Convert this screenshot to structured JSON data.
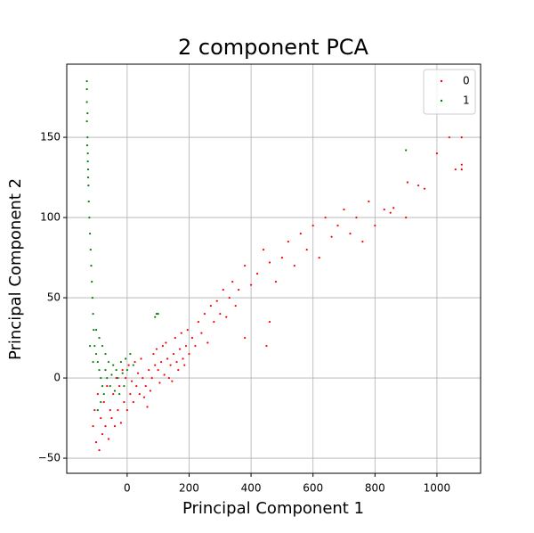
{
  "chart_data": {
    "type": "scatter",
    "title": "2 component PCA",
    "x_label": "Principal Component 1",
    "y_label": "Principal Component 2",
    "xlim": [
      -195,
      1141
    ],
    "ylim": [
      -59.4,
      195.6
    ],
    "xticks": [
      0,
      200,
      400,
      600,
      800,
      1000
    ],
    "yticks": [
      {
        "value": -50,
        "label": "−50"
      },
      0,
      50,
      100,
      150
    ],
    "grid": true,
    "legend": "upper right",
    "series": [
      {
        "name": "0",
        "color": "#ff0000",
        "x": [
          -100,
          -90,
          -80,
          -70,
          -60,
          -50,
          -40,
          -30,
          -20,
          -10,
          0,
          10,
          20,
          30,
          40,
          50,
          60,
          70,
          80,
          90,
          100,
          110,
          120,
          130,
          140,
          150,
          160,
          170,
          180,
          190,
          200,
          -110,
          -105,
          -95,
          -85,
          -75,
          -65,
          -55,
          -45,
          -35,
          -25,
          -15,
          -5,
          5,
          15,
          25,
          35,
          45,
          55,
          65,
          75,
          85,
          95,
          105,
          115,
          125,
          135,
          145,
          155,
          165,
          175,
          185,
          195,
          210,
          220,
          230,
          240,
          250,
          260,
          270,
          280,
          290,
          300,
          310,
          320,
          330,
          340,
          350,
          360,
          380,
          400,
          420,
          440,
          460,
          480,
          500,
          520,
          540,
          560,
          580,
          600,
          620,
          640,
          660,
          680,
          700,
          720,
          740,
          760,
          780,
          800,
          830,
          850,
          860,
          900,
          905,
          940,
          960,
          1000,
          1040,
          1060,
          1080,
          1080,
          1080,
          450,
          380,
          460
        ],
        "values": [
          -40,
          -45,
          -35,
          -30,
          -38,
          -25,
          -30,
          -20,
          -28,
          -15,
          -20,
          -10,
          -15,
          -5,
          -10,
          0,
          -5,
          5,
          0,
          8,
          5,
          10,
          2,
          12,
          8,
          15,
          10,
          18,
          12,
          20,
          15,
          -30,
          -20,
          -10,
          -25,
          -15,
          -5,
          -20,
          -10,
          0,
          -5,
          5,
          0,
          8,
          -2,
          10,
          3,
          12,
          -12,
          -18,
          -8,
          15,
          18,
          -3,
          20,
          22,
          0,
          -2,
          25,
          5,
          28,
          8,
          30,
          25,
          20,
          35,
          28,
          40,
          22,
          45,
          35,
          48,
          40,
          55,
          38,
          50,
          60,
          45,
          55,
          70,
          58,
          65,
          80,
          72,
          60,
          75,
          85,
          70,
          90,
          80,
          95,
          75,
          100,
          88,
          95,
          105,
          90,
          100,
          85,
          110,
          95,
          105,
          103,
          106,
          100,
          122,
          120,
          118,
          140,
          150,
          130,
          150,
          130,
          133,
          20,
          25,
          35
        ]
      },
      {
        "name": "1",
        "color": "#008000",
        "x": [
          -130,
          -130,
          -130,
          -128,
          -130,
          -128,
          -127,
          -126,
          -125,
          -124,
          -122,
          -120,
          -118,
          -116,
          -114,
          -112,
          -110,
          -108,
          -105,
          -100,
          -95,
          -90,
          -85,
          -80,
          -75,
          -70,
          -65,
          -60,
          -55,
          -50,
          -45,
          -40,
          -35,
          -30,
          -25,
          -20,
          -15,
          -10,
          -5,
          0,
          10,
          20,
          -100,
          -90,
          -80,
          -70,
          -95,
          -85,
          -110,
          -120,
          90,
          95,
          100,
          900,
          -129,
          -127,
          -126
        ],
        "values": [
          185,
          180,
          172,
          165,
          160,
          150,
          140,
          130,
          120,
          110,
          100,
          90,
          80,
          70,
          60,
          50,
          40,
          30,
          20,
          15,
          10,
          5,
          0,
          -5,
          -10,
          5,
          0,
          10,
          -5,
          2,
          8,
          -8,
          5,
          0,
          -10,
          10,
          3,
          -5,
          12,
          5,
          15,
          8,
          30,
          25,
          20,
          15,
          -20,
          -15,
          10,
          20,
          38,
          40,
          40,
          142,
          145,
          135,
          125
        ]
      }
    ]
  }
}
